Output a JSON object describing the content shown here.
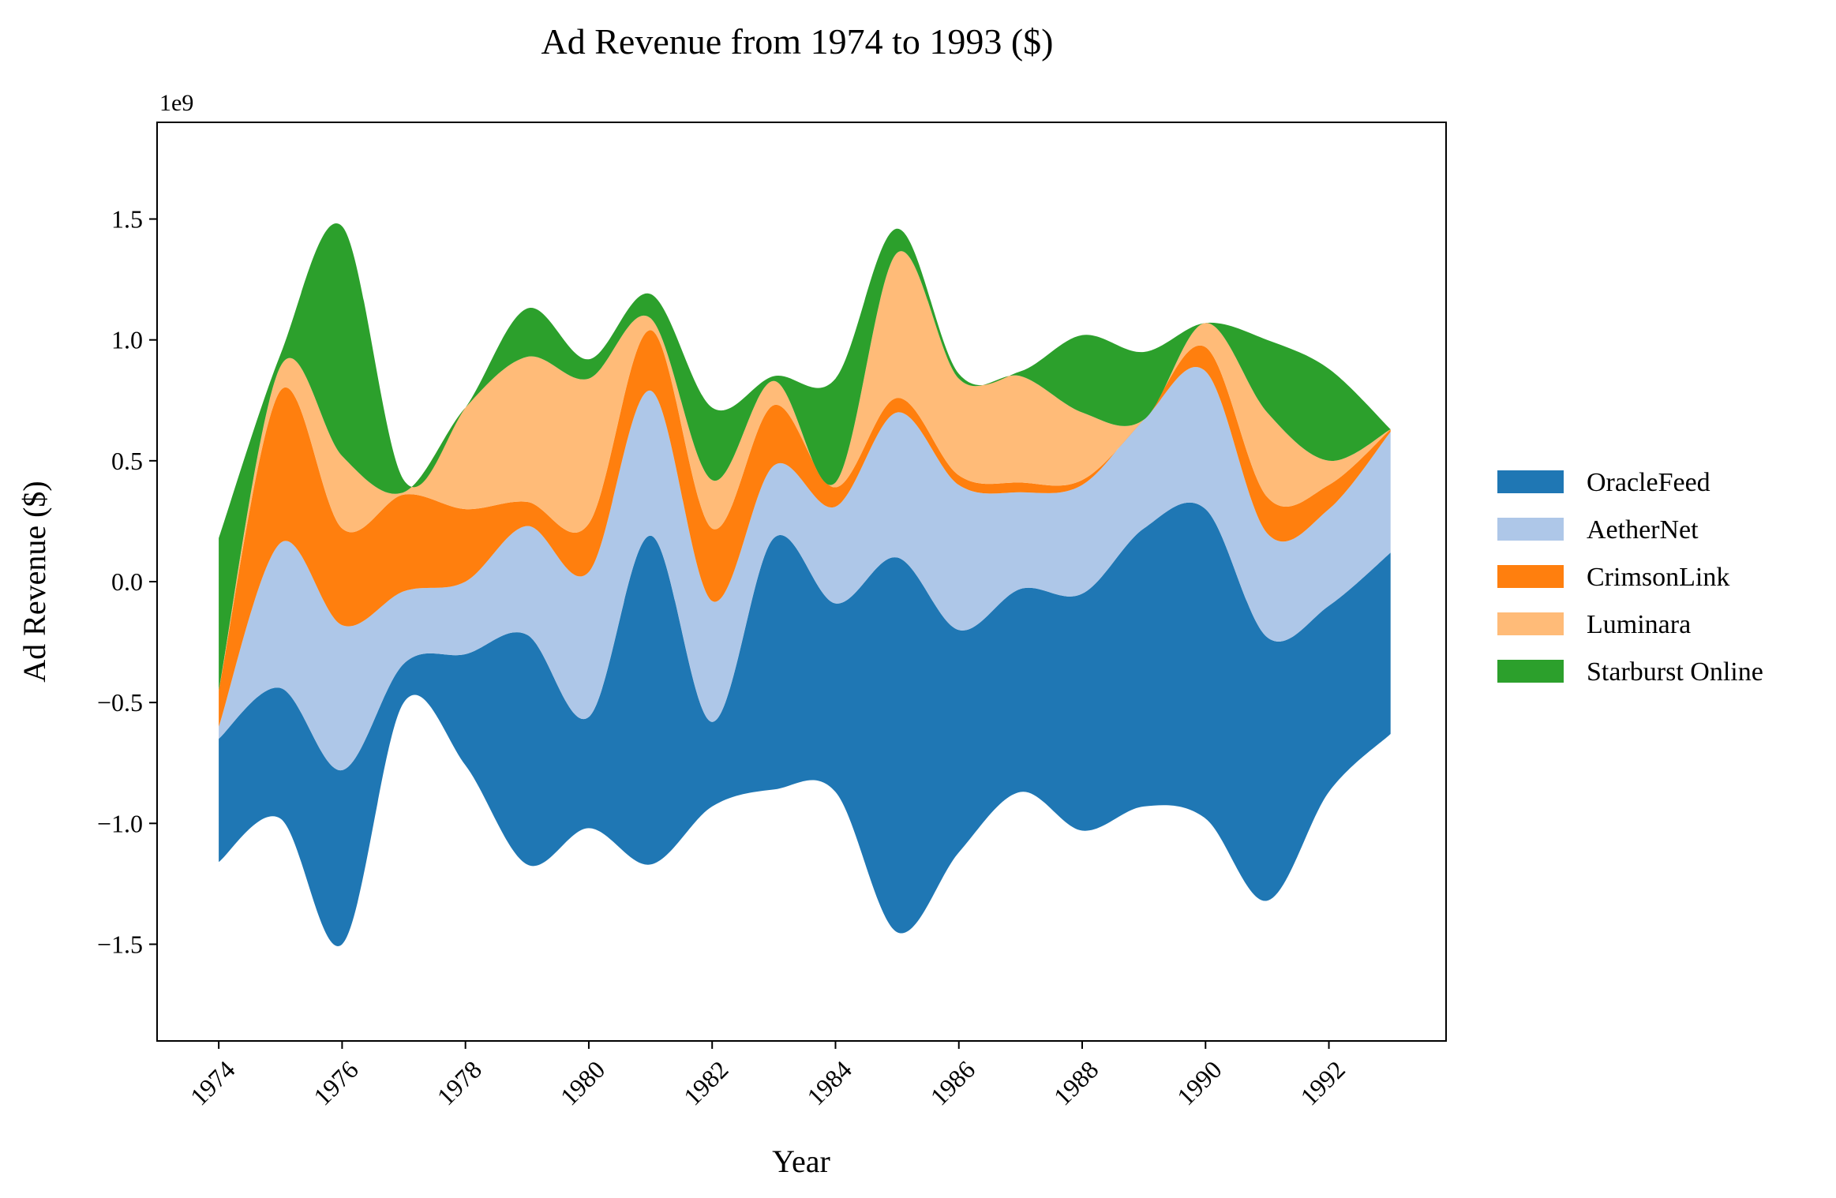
{
  "chart_data": {
    "type": "area",
    "subtype": "streamgraph",
    "title": "Ad Revenue from 1974 to 1993 ($)",
    "xlabel": "Year",
    "ylabel": "Ad Revenue ($)",
    "y_offset_label": "1e9",
    "y_scale_factor": 1000000000,
    "xlim": [
      1973.0,
      1993.9
    ],
    "ylim": [
      -1.9,
      1.9
    ],
    "x_ticks": [
      1974,
      1976,
      1978,
      1980,
      1982,
      1984,
      1986,
      1988,
      1990,
      1992
    ],
    "x_tick_labels": [
      "1974",
      "1976",
      "1978",
      "1980",
      "1982",
      "1984",
      "1986",
      "1988",
      "1990",
      "1992"
    ],
    "y_ticks": [
      -1.5,
      -1.0,
      -0.5,
      0.0,
      0.5,
      1.0,
      1.5
    ],
    "y_tick_labels": [
      "−1.5",
      "−1.0",
      "−0.5",
      "0.0",
      "0.5",
      "1.0",
      "1.5"
    ],
    "grid": false,
    "legend_position": "right",
    "x": [
      1974,
      1975,
      1976,
      1977,
      1978,
      1979,
      1980,
      1981,
      1982,
      1983,
      1984,
      1985,
      1986,
      1987,
      1988,
      1989,
      1990,
      1991,
      1992,
      1993
    ],
    "baseline": [
      -1.16,
      -0.98,
      -1.5,
      -0.5,
      -0.76,
      -1.17,
      -1.02,
      -1.17,
      -0.93,
      -0.86,
      -0.87,
      -1.45,
      -1.12,
      -0.87,
      -1.03,
      -0.93,
      -0.98,
      -1.32,
      -0.87,
      -0.63
    ],
    "series": [
      {
        "name": "OracleFeed",
        "color": "#1f77b4",
        "values": [
          0.51,
          0.54,
          0.72,
          0.16,
          0.46,
          0.95,
          0.46,
          1.36,
          0.35,
          1.04,
          0.78,
          1.55,
          0.92,
          0.84,
          0.98,
          1.15,
          1.28,
          1.09,
          0.77,
          0.75
        ]
      },
      {
        "name": "AetherNet",
        "color": "#aec7e8",
        "values": [
          0.05,
          0.6,
          0.6,
          0.3,
          0.3,
          0.45,
          0.6,
          0.6,
          0.5,
          0.3,
          0.4,
          0.6,
          0.6,
          0.4,
          0.45,
          0.45,
          0.57,
          0.43,
          0.4,
          0.5
        ]
      },
      {
        "name": "CrimsonLink",
        "color": "#ff7f0e",
        "values": [
          0.15,
          0.63,
          0.4,
          0.4,
          0.3,
          0.1,
          0.2,
          0.25,
          0.3,
          0.25,
          0.08,
          0.06,
          0.04,
          0.04,
          0.02,
          0.0,
          0.1,
          0.15,
          0.1,
          0.01
        ]
      },
      {
        "name": "Luminara",
        "color": "#ffbb78",
        "values": [
          0.0,
          0.1,
          0.3,
          0.01,
          0.42,
          0.6,
          0.6,
          0.05,
          0.2,
          0.1,
          0.02,
          0.6,
          0.4,
          0.44,
          0.28,
          0.0,
          0.1,
          0.35,
          0.1,
          0.0
        ]
      },
      {
        "name": "Starburst Online",
        "color": "#2ca02c",
        "values": [
          0.63,
          0.05,
          0.95,
          0.05,
          0.0,
          0.2,
          0.08,
          0.1,
          0.3,
          0.02,
          0.43,
          0.1,
          0.02,
          0.02,
          0.32,
          0.28,
          0.0,
          0.3,
          0.38,
          0.0
        ]
      }
    ]
  }
}
